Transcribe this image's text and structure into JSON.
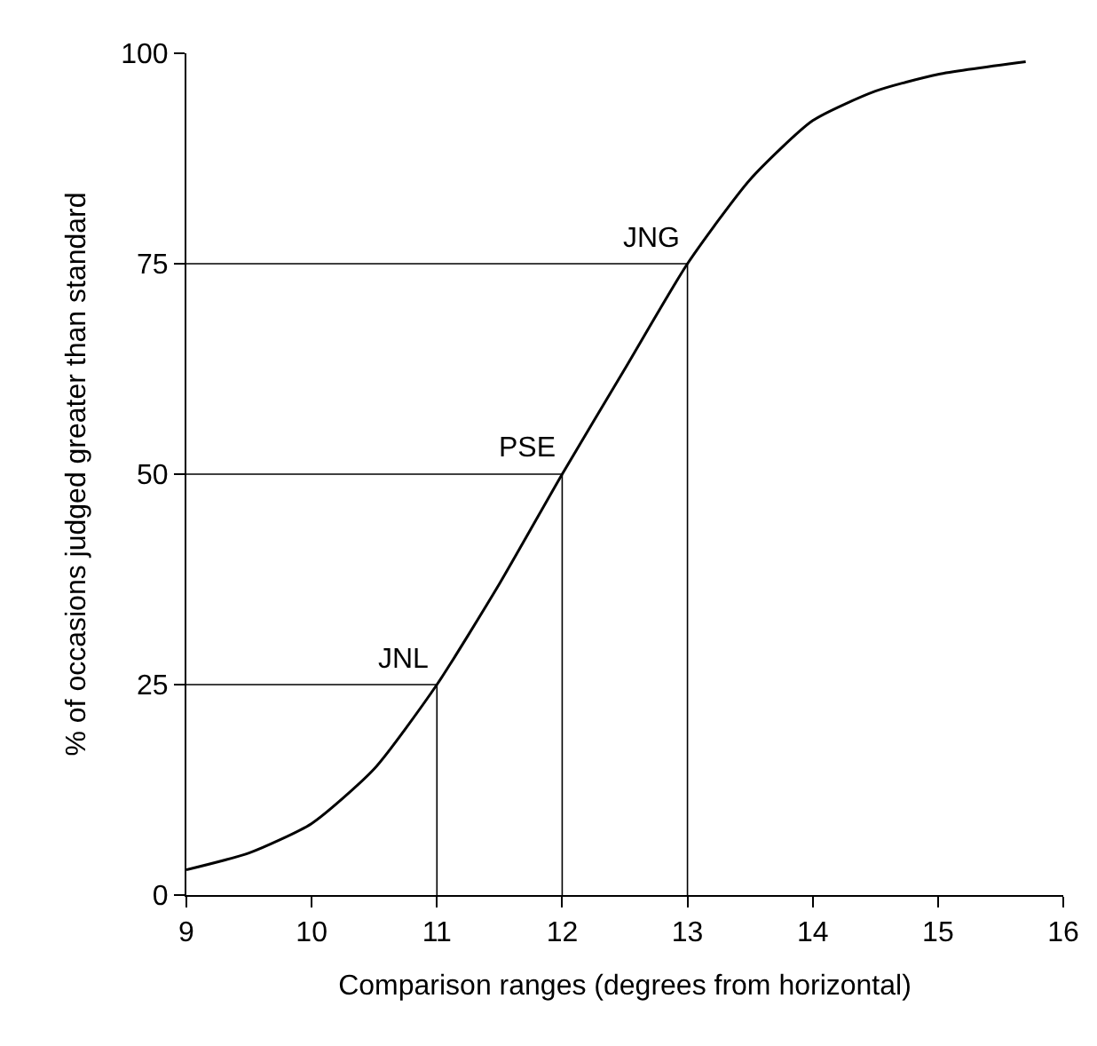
{
  "chart_data": {
    "type": "line",
    "xlabel": "Comparison ranges (degrees from horizontal)",
    "ylabel": "% of occasions judged greater than standard",
    "x": [
      9,
      9.5,
      10,
      10.5,
      11,
      11.5,
      12,
      12.5,
      13,
      13.5,
      14,
      14.5,
      15,
      15.7
    ],
    "series": [
      {
        "color": "#000000",
        "values": [
          3,
          5,
          8.5,
          15,
          25,
          37,
          50,
          62.5,
          75,
          85,
          92,
          95.5,
          97.5,
          99
        ]
      }
    ],
    "xlim": [
      9,
      16
    ],
    "xticks": [
      9,
      10,
      11,
      12,
      13,
      14,
      15,
      16
    ],
    "ylim": [
      0,
      100
    ],
    "yticks": [
      0,
      25,
      50,
      75,
      100
    ],
    "ref_lines": [
      {
        "axis": "y",
        "value": 25
      },
      {
        "axis": "y",
        "value": 50
      },
      {
        "axis": "y",
        "value": 75
      },
      {
        "axis": "x",
        "value": 11
      },
      {
        "axis": "x",
        "value": 12
      },
      {
        "axis": "x",
        "value": 13
      }
    ],
    "annotations": [
      {
        "text": "JNL",
        "x": 11,
        "y": 25
      },
      {
        "text": "PSE",
        "x": 12,
        "y": 50
      },
      {
        "text": "JNG",
        "x": 13,
        "y": 75
      }
    ],
    "marker": "none",
    "line_style": "solid"
  }
}
